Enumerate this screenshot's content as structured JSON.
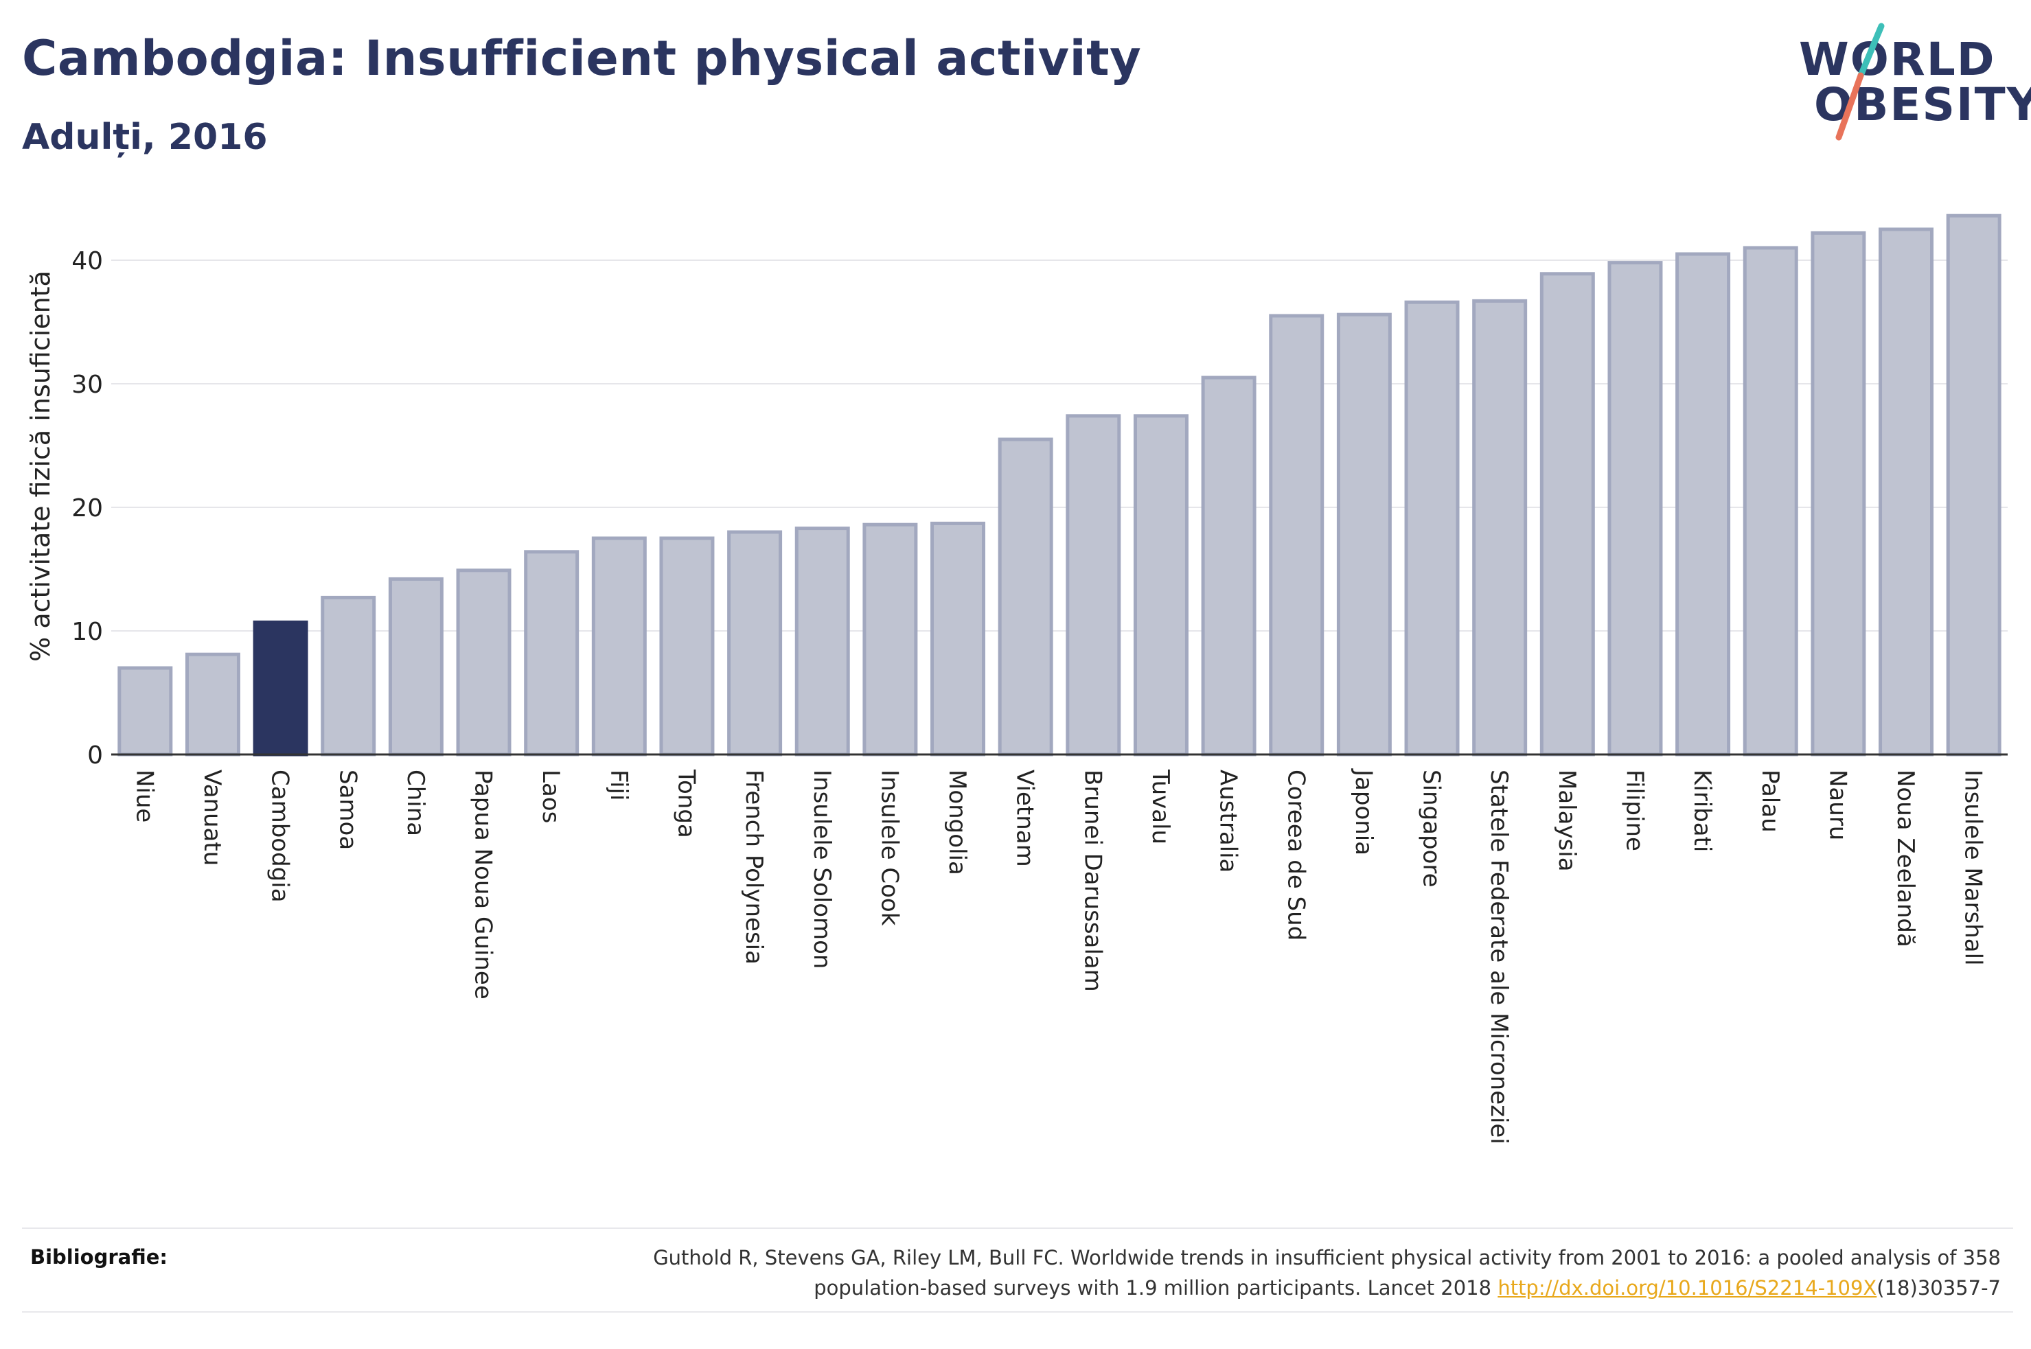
{
  "header": {
    "title": "Cambodgia: Insufficient physical activity",
    "subtitle": "Adulți, 2016"
  },
  "logo": {
    "line1": "WORLD",
    "line2": "OBESITY",
    "accent_colors": [
      "#3dbfb8",
      "#e8735a"
    ]
  },
  "colors": {
    "highlight_bar": "#2b3560",
    "bar_fill": "#bfc3d1",
    "bar_stroke": "#a2a8bf",
    "text": "#2b3560",
    "link": "#e8a81c"
  },
  "chart_data": {
    "type": "bar",
    "ylabel": "% activitate fizică insuficientă",
    "ylim": [
      0,
      44
    ],
    "yticks": [
      0,
      10,
      20,
      30,
      40
    ],
    "grid": true,
    "highlight": "Cambodgia",
    "categories": [
      "Niue",
      "Vanuatu",
      "Cambodgia",
      "Samoa",
      "China",
      "Papua Noua Guinee",
      "Laos",
      "Fiji",
      "Tonga",
      "French Polynesia",
      "Insulele Solomon",
      "Insulele Cook",
      "Mongolia",
      "Vietnam",
      "Brunei Darussalam",
      "Tuvalu",
      "Australia",
      "Coreea de Sud",
      "Japonia",
      "Singapore",
      "Statele Federate ale Microneziei",
      "Malaysia",
      "Filipine",
      "Kiribati",
      "Palau",
      "Nauru",
      "Noua Zeelandă",
      "Insulele Marshall"
    ],
    "values": [
      7.0,
      8.1,
      10.7,
      12.7,
      14.2,
      14.9,
      16.4,
      17.5,
      17.5,
      18.0,
      18.3,
      18.6,
      18.7,
      25.5,
      27.4,
      27.4,
      30.5,
      35.5,
      35.6,
      36.6,
      36.7,
      38.9,
      39.8,
      40.5,
      41.0,
      42.2,
      42.5,
      43.6
    ]
  },
  "footer": {
    "label": "Bibliografie:",
    "line1": "Guthold R, Stevens GA, Riley LM, Bull FC. Worldwide trends in insufficient physical activity from 2001 to 2016: a pooled analysis of 358",
    "line2_prefix": "population-based surveys with 1.9 million participants. Lancet 2018 ",
    "link": "http://dx.doi.org/10.1016/S2214-109X",
    "line2_suffix": "(18)30357-7"
  }
}
